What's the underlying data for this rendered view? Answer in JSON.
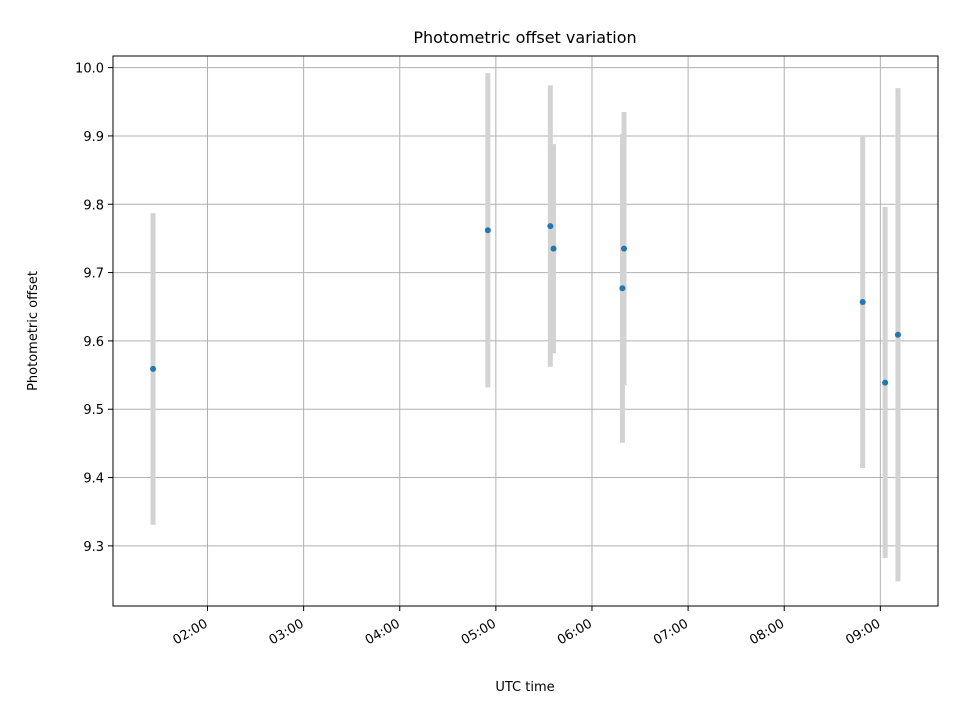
{
  "chart_data": {
    "type": "scatter",
    "title": "Photometric offset variation",
    "xlabel": "UTC time",
    "ylabel": "Photometric offset",
    "x_tick_labels": [
      "02:00",
      "03:00",
      "04:00",
      "05:00",
      "06:00",
      "07:00",
      "08:00",
      "09:00"
    ],
    "y_tick_labels": [
      "9.3",
      "9.4",
      "9.5",
      "9.6",
      "9.7",
      "9.8",
      "9.9",
      "10.0"
    ],
    "xlim": [
      "01:01",
      "09:36"
    ],
    "ylim": [
      9.212,
      10.017
    ],
    "grid": true,
    "colors": {
      "point": "#1f77b4",
      "errorbar": "#d3d3d3",
      "grid": "#b0b0b0"
    },
    "points": [
      {
        "x": "01:26",
        "y": 9.559,
        "yerr": 0.228
      },
      {
        "x": "04:55",
        "y": 9.762,
        "yerr": 0.23
      },
      {
        "x": "05:34",
        "y": 9.768,
        "yerr": 0.206
      },
      {
        "x": "05:36",
        "y": 9.735,
        "yerr": 0.153
      },
      {
        "x": "06:19",
        "y": 9.677,
        "yerr": 0.226
      },
      {
        "x": "06:20",
        "y": 9.735,
        "yerr": 0.2
      },
      {
        "x": "08:49",
        "y": 9.657,
        "yerr": 0.243
      },
      {
        "x": "09:03",
        "y": 9.539,
        "yerr": 0.257
      },
      {
        "x": "09:11",
        "y": 9.609,
        "yerr": 0.361
      }
    ]
  }
}
